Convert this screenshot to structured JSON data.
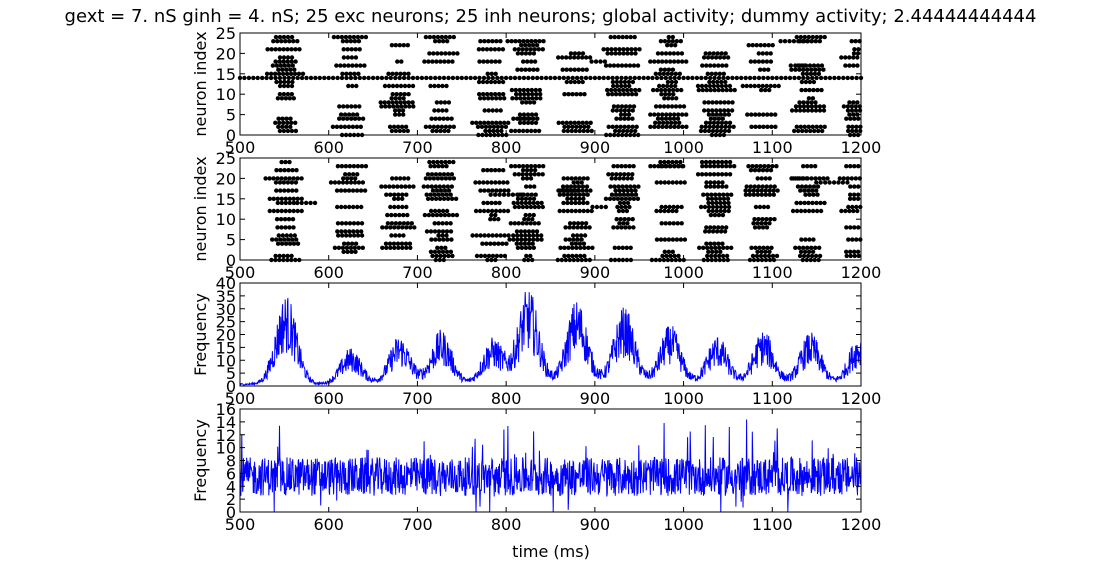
{
  "figure": {
    "title": "gext = 7. nS ginh = 4. nS; 25 exc neurons; 25 inh neurons; global activity; dummy activity; 2.44444444444",
    "xlabel": "time (ms)"
  },
  "colors": {
    "raster_dots": "#000000",
    "line": "#0000ff",
    "axes": "#000000",
    "background": "#ffffff"
  },
  "chart_data": [
    {
      "type": "scatter",
      "name": "exc-raster",
      "xlabel": "",
      "ylabel": "neuron index",
      "xlim": [
        500,
        1200
      ],
      "ylim": [
        0,
        25
      ],
      "xticks": [
        500,
        600,
        700,
        800,
        900,
        1000,
        1100,
        1200
      ],
      "yticks": [
        0,
        5,
        10,
        15,
        20,
        25
      ],
      "burst_centers_ms": [
        552,
        625,
        680,
        727,
        785,
        825,
        880,
        933,
        985,
        1038,
        1090,
        1143,
        1198
      ],
      "always_active_neuron": 14,
      "grid": false
    },
    {
      "type": "scatter",
      "name": "inh-raster",
      "xlabel": "",
      "ylabel": "neuron index",
      "xlim": [
        500,
        1200
      ],
      "ylim": [
        0,
        25
      ],
      "xticks": [
        500,
        600,
        700,
        800,
        900,
        1000,
        1100,
        1200
      ],
      "yticks": [
        0,
        5,
        10,
        15,
        20,
        25
      ],
      "burst_centers_ms": [
        552,
        625,
        680,
        727,
        785,
        825,
        880,
        933,
        985,
        1038,
        1090,
        1143,
        1198
      ],
      "grid": false
    },
    {
      "type": "line",
      "name": "global-activity",
      "xlabel": "",
      "ylabel": "Frequency",
      "xlim": [
        500,
        1200
      ],
      "ylim": [
        0,
        40
      ],
      "xticks": [
        500,
        600,
        700,
        800,
        900,
        1000,
        1100,
        1200
      ],
      "yticks": [
        0,
        5,
        10,
        15,
        20,
        25,
        30,
        35,
        40
      ],
      "peaks": [
        {
          "x": 552,
          "y": 35
        },
        {
          "x": 625,
          "y": 14
        },
        {
          "x": 680,
          "y": 19
        },
        {
          "x": 727,
          "y": 21
        },
        {
          "x": 785,
          "y": 18
        },
        {
          "x": 825,
          "y": 37
        },
        {
          "x": 880,
          "y": 33
        },
        {
          "x": 933,
          "y": 30
        },
        {
          "x": 985,
          "y": 23
        },
        {
          "x": 1038,
          "y": 19
        },
        {
          "x": 1090,
          "y": 21
        },
        {
          "x": 1143,
          "y": 20
        },
        {
          "x": 1198,
          "y": 19
        }
      ],
      "baseline": 1,
      "grid": false
    },
    {
      "type": "line",
      "name": "dummy-activity",
      "xlabel": "time (ms)",
      "ylabel": "Frequency",
      "xlim": [
        500,
        1200
      ],
      "ylim": [
        0,
        16
      ],
      "xticks": [
        500,
        600,
        700,
        800,
        900,
        1000,
        1100,
        1200
      ],
      "yticks": [
        0,
        2,
        4,
        6,
        8,
        10,
        12,
        14,
        16
      ],
      "mean": 5.5,
      "spread": 3,
      "max_spikes": 15,
      "grid": false
    }
  ]
}
